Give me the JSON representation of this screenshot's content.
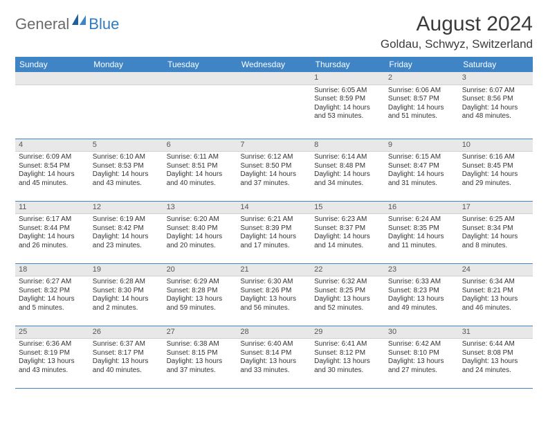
{
  "brand": {
    "general": "General",
    "blue": "Blue"
  },
  "header": {
    "month_year": "August 2024",
    "location": "Goldau, Schwyz, Switzerland"
  },
  "colors": {
    "header_bar": "#3f85c6",
    "day_number_bg": "#e8e8e8",
    "row_border": "#3f85c6",
    "text": "#333333",
    "logo_gray": "#6a6a6a",
    "logo_blue": "#2f7ac0",
    "background": "#ffffff"
  },
  "typography": {
    "title_fontsize": 30,
    "location_fontsize": 17,
    "weekday_fontsize": 12,
    "daynum_fontsize": 11,
    "body_fontsize": 10
  },
  "weekdays": [
    "Sunday",
    "Monday",
    "Tuesday",
    "Wednesday",
    "Thursday",
    "Friday",
    "Saturday"
  ],
  "weeks": [
    [
      null,
      null,
      null,
      null,
      {
        "d": "1",
        "sunrise": "Sunrise: 6:05 AM",
        "sunset": "Sunset: 8:59 PM",
        "daylight1": "Daylight: 14 hours",
        "daylight2": "and 53 minutes."
      },
      {
        "d": "2",
        "sunrise": "Sunrise: 6:06 AM",
        "sunset": "Sunset: 8:57 PM",
        "daylight1": "Daylight: 14 hours",
        "daylight2": "and 51 minutes."
      },
      {
        "d": "3",
        "sunrise": "Sunrise: 6:07 AM",
        "sunset": "Sunset: 8:56 PM",
        "daylight1": "Daylight: 14 hours",
        "daylight2": "and 48 minutes."
      }
    ],
    [
      {
        "d": "4",
        "sunrise": "Sunrise: 6:09 AM",
        "sunset": "Sunset: 8:54 PM",
        "daylight1": "Daylight: 14 hours",
        "daylight2": "and 45 minutes."
      },
      {
        "d": "5",
        "sunrise": "Sunrise: 6:10 AM",
        "sunset": "Sunset: 8:53 PM",
        "daylight1": "Daylight: 14 hours",
        "daylight2": "and 43 minutes."
      },
      {
        "d": "6",
        "sunrise": "Sunrise: 6:11 AM",
        "sunset": "Sunset: 8:51 PM",
        "daylight1": "Daylight: 14 hours",
        "daylight2": "and 40 minutes."
      },
      {
        "d": "7",
        "sunrise": "Sunrise: 6:12 AM",
        "sunset": "Sunset: 8:50 PM",
        "daylight1": "Daylight: 14 hours",
        "daylight2": "and 37 minutes."
      },
      {
        "d": "8",
        "sunrise": "Sunrise: 6:14 AM",
        "sunset": "Sunset: 8:48 PM",
        "daylight1": "Daylight: 14 hours",
        "daylight2": "and 34 minutes."
      },
      {
        "d": "9",
        "sunrise": "Sunrise: 6:15 AM",
        "sunset": "Sunset: 8:47 PM",
        "daylight1": "Daylight: 14 hours",
        "daylight2": "and 31 minutes."
      },
      {
        "d": "10",
        "sunrise": "Sunrise: 6:16 AM",
        "sunset": "Sunset: 8:45 PM",
        "daylight1": "Daylight: 14 hours",
        "daylight2": "and 29 minutes."
      }
    ],
    [
      {
        "d": "11",
        "sunrise": "Sunrise: 6:17 AM",
        "sunset": "Sunset: 8:44 PM",
        "daylight1": "Daylight: 14 hours",
        "daylight2": "and 26 minutes."
      },
      {
        "d": "12",
        "sunrise": "Sunrise: 6:19 AM",
        "sunset": "Sunset: 8:42 PM",
        "daylight1": "Daylight: 14 hours",
        "daylight2": "and 23 minutes."
      },
      {
        "d": "13",
        "sunrise": "Sunrise: 6:20 AM",
        "sunset": "Sunset: 8:40 PM",
        "daylight1": "Daylight: 14 hours",
        "daylight2": "and 20 minutes."
      },
      {
        "d": "14",
        "sunrise": "Sunrise: 6:21 AM",
        "sunset": "Sunset: 8:39 PM",
        "daylight1": "Daylight: 14 hours",
        "daylight2": "and 17 minutes."
      },
      {
        "d": "15",
        "sunrise": "Sunrise: 6:23 AM",
        "sunset": "Sunset: 8:37 PM",
        "daylight1": "Daylight: 14 hours",
        "daylight2": "and 14 minutes."
      },
      {
        "d": "16",
        "sunrise": "Sunrise: 6:24 AM",
        "sunset": "Sunset: 8:35 PM",
        "daylight1": "Daylight: 14 hours",
        "daylight2": "and 11 minutes."
      },
      {
        "d": "17",
        "sunrise": "Sunrise: 6:25 AM",
        "sunset": "Sunset: 8:34 PM",
        "daylight1": "Daylight: 14 hours",
        "daylight2": "and 8 minutes."
      }
    ],
    [
      {
        "d": "18",
        "sunrise": "Sunrise: 6:27 AM",
        "sunset": "Sunset: 8:32 PM",
        "daylight1": "Daylight: 14 hours",
        "daylight2": "and 5 minutes."
      },
      {
        "d": "19",
        "sunrise": "Sunrise: 6:28 AM",
        "sunset": "Sunset: 8:30 PM",
        "daylight1": "Daylight: 14 hours",
        "daylight2": "and 2 minutes."
      },
      {
        "d": "20",
        "sunrise": "Sunrise: 6:29 AM",
        "sunset": "Sunset: 8:28 PM",
        "daylight1": "Daylight: 13 hours",
        "daylight2": "and 59 minutes."
      },
      {
        "d": "21",
        "sunrise": "Sunrise: 6:30 AM",
        "sunset": "Sunset: 8:26 PM",
        "daylight1": "Daylight: 13 hours",
        "daylight2": "and 56 minutes."
      },
      {
        "d": "22",
        "sunrise": "Sunrise: 6:32 AM",
        "sunset": "Sunset: 8:25 PM",
        "daylight1": "Daylight: 13 hours",
        "daylight2": "and 52 minutes."
      },
      {
        "d": "23",
        "sunrise": "Sunrise: 6:33 AM",
        "sunset": "Sunset: 8:23 PM",
        "daylight1": "Daylight: 13 hours",
        "daylight2": "and 49 minutes."
      },
      {
        "d": "24",
        "sunrise": "Sunrise: 6:34 AM",
        "sunset": "Sunset: 8:21 PM",
        "daylight1": "Daylight: 13 hours",
        "daylight2": "and 46 minutes."
      }
    ],
    [
      {
        "d": "25",
        "sunrise": "Sunrise: 6:36 AM",
        "sunset": "Sunset: 8:19 PM",
        "daylight1": "Daylight: 13 hours",
        "daylight2": "and 43 minutes."
      },
      {
        "d": "26",
        "sunrise": "Sunrise: 6:37 AM",
        "sunset": "Sunset: 8:17 PM",
        "daylight1": "Daylight: 13 hours",
        "daylight2": "and 40 minutes."
      },
      {
        "d": "27",
        "sunrise": "Sunrise: 6:38 AM",
        "sunset": "Sunset: 8:15 PM",
        "daylight1": "Daylight: 13 hours",
        "daylight2": "and 37 minutes."
      },
      {
        "d": "28",
        "sunrise": "Sunrise: 6:40 AM",
        "sunset": "Sunset: 8:14 PM",
        "daylight1": "Daylight: 13 hours",
        "daylight2": "and 33 minutes."
      },
      {
        "d": "29",
        "sunrise": "Sunrise: 6:41 AM",
        "sunset": "Sunset: 8:12 PM",
        "daylight1": "Daylight: 13 hours",
        "daylight2": "and 30 minutes."
      },
      {
        "d": "30",
        "sunrise": "Sunrise: 6:42 AM",
        "sunset": "Sunset: 8:10 PM",
        "daylight1": "Daylight: 13 hours",
        "daylight2": "and 27 minutes."
      },
      {
        "d": "31",
        "sunrise": "Sunrise: 6:44 AM",
        "sunset": "Sunset: 8:08 PM",
        "daylight1": "Daylight: 13 hours",
        "daylight2": "and 24 minutes."
      }
    ]
  ]
}
